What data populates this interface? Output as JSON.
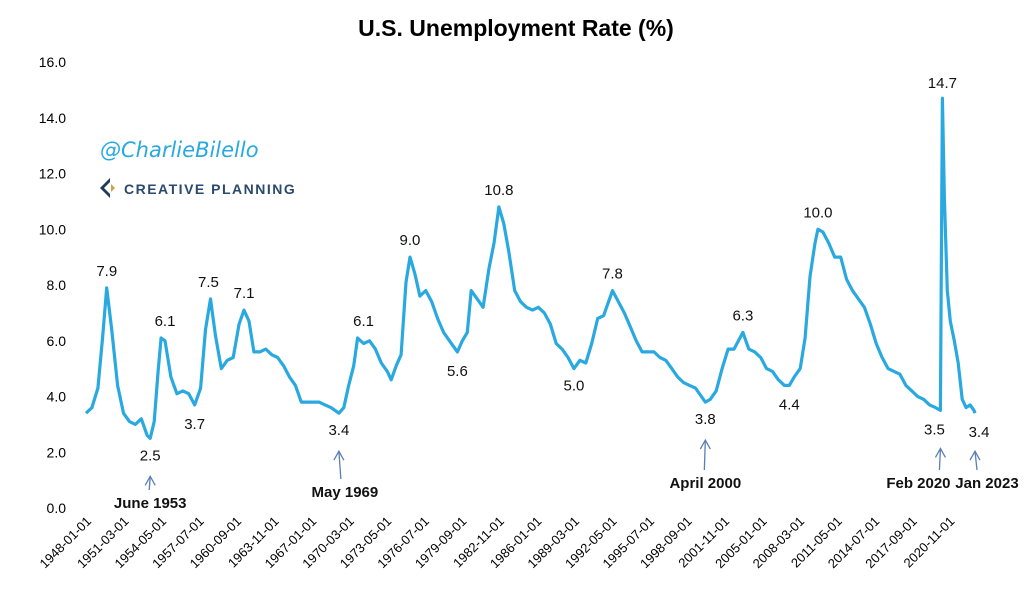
{
  "handle": "@CharlieBilello",
  "brand": {
    "name": "CREATIVE PLANNING",
    "logo_colors": [
      "#1f3a5c",
      "#c9a24a"
    ]
  },
  "chart_data": {
    "type": "line",
    "title": "U.S. Unemployment Rate (%)",
    "xlabel": "",
    "ylabel": "",
    "ylim": [
      0,
      16
    ],
    "yticks": [
      "0.0",
      "2.0",
      "4.0",
      "6.0",
      "8.0",
      "10.0",
      "12.0",
      "14.0",
      "16.0"
    ],
    "xticks": [
      "1948-01-01",
      "1951-03-01",
      "1954-05-01",
      "1957-07-01",
      "1960-09-01",
      "1963-11-01",
      "1967-01-01",
      "1970-03-01",
      "1973-05-01",
      "1976-07-01",
      "1979-09-01",
      "1982-11-01",
      "1986-01-01",
      "1989-03-01",
      "1992-05-01",
      "1995-07-01",
      "1998-09-01",
      "2001-11-01",
      "2005-01-01",
      "2008-03-01",
      "2011-05-01",
      "2014-07-01",
      "2017-09-01",
      "2020-11-01"
    ],
    "grid": false,
    "legend": "none",
    "line_color": "#29a9e0",
    "series": [
      {
        "x": [
          "1948-01",
          "1948-07",
          "1949-01",
          "1949-06",
          "1949-10",
          "1950-03",
          "1950-09",
          "1951-03",
          "1951-09",
          "1952-03",
          "1952-09",
          "1953-03",
          "1953-06",
          "1953-10",
          "1954-02",
          "1954-05",
          "1954-09",
          "1955-03",
          "1955-09",
          "1956-03",
          "1956-09",
          "1957-03",
          "1957-09",
          "1958-02",
          "1958-07",
          "1958-12",
          "1959-06",
          "1959-12",
          "1960-06",
          "1960-12",
          "1961-05",
          "1961-10",
          "1962-03",
          "1962-09",
          "1963-03",
          "1963-09",
          "1964-03",
          "1964-09",
          "1965-03",
          "1965-09",
          "1966-03",
          "1966-09",
          "1967-03",
          "1967-09",
          "1968-03",
          "1968-09",
          "1969-05",
          "1969-10",
          "1970-03",
          "1970-08",
          "1970-12",
          "1971-06",
          "1971-12",
          "1972-06",
          "1972-12",
          "1973-06",
          "1973-10",
          "1974-03",
          "1974-08",
          "1975-01",
          "1975-05",
          "1975-10",
          "1976-03",
          "1976-09",
          "1977-03",
          "1977-09",
          "1978-03",
          "1978-09",
          "1979-05",
          "1979-10",
          "1980-03",
          "1980-07",
          "1981-01",
          "1981-07",
          "1982-01",
          "1982-06",
          "1982-11",
          "1983-04",
          "1983-09",
          "1984-03",
          "1984-09",
          "1985-03",
          "1985-09",
          "1986-03",
          "1986-09",
          "1987-03",
          "1987-09",
          "1988-03",
          "1988-09",
          "1989-03",
          "1989-09",
          "1990-03",
          "1990-09",
          "1991-03",
          "1991-09",
          "1992-06",
          "1992-12",
          "1993-06",
          "1993-12",
          "1994-06",
          "1994-12",
          "1995-06",
          "1995-12",
          "1996-06",
          "1996-12",
          "1997-06",
          "1997-12",
          "1998-06",
          "1998-12",
          "1999-06",
          "1999-12",
          "2000-04",
          "2000-09",
          "2001-03",
          "2001-09",
          "2002-03",
          "2002-09",
          "2003-06",
          "2003-12",
          "2004-06",
          "2004-12",
          "2005-06",
          "2005-12",
          "2006-06",
          "2006-12",
          "2007-05",
          "2007-10",
          "2008-04",
          "2008-09",
          "2009-02",
          "2009-07",
          "2009-10",
          "2010-03",
          "2010-09",
          "2011-03",
          "2011-09",
          "2012-03",
          "2012-09",
          "2013-03",
          "2013-09",
          "2014-03",
          "2014-09",
          "2015-03",
          "2015-09",
          "2016-03",
          "2016-09",
          "2017-03",
          "2017-09",
          "2018-03",
          "2018-09",
          "2019-03",
          "2019-09",
          "2020-02",
          "2020-04",
          "2020-06",
          "2020-09",
          "2020-12",
          "2021-04",
          "2021-08",
          "2021-12",
          "2022-04",
          "2022-08",
          "2022-12",
          "2023-01"
        ],
        "values": [
          3.4,
          3.6,
          4.3,
          6.2,
          7.9,
          6.4,
          4.4,
          3.4,
          3.1,
          3.0,
          3.2,
          2.6,
          2.5,
          3.1,
          4.9,
          6.1,
          6.0,
          4.7,
          4.1,
          4.2,
          4.1,
          3.7,
          4.3,
          6.4,
          7.5,
          6.2,
          5.0,
          5.3,
          5.4,
          6.6,
          7.1,
          6.7,
          5.6,
          5.6,
          5.7,
          5.5,
          5.4,
          5.1,
          4.7,
          4.4,
          3.8,
          3.8,
          3.8,
          3.8,
          3.7,
          3.6,
          3.4,
          3.6,
          4.4,
          5.1,
          6.1,
          5.9,
          6.0,
          5.7,
          5.2,
          4.9,
          4.6,
          5.1,
          5.5,
          8.1,
          9.0,
          8.4,
          7.6,
          7.8,
          7.4,
          6.8,
          6.3,
          6.0,
          5.6,
          6.0,
          6.3,
          7.8,
          7.5,
          7.2,
          8.6,
          9.5,
          10.8,
          10.2,
          9.2,
          7.8,
          7.4,
          7.2,
          7.1,
          7.2,
          7.0,
          6.6,
          5.9,
          5.7,
          5.4,
          5.0,
          5.3,
          5.2,
          5.9,
          6.8,
          6.9,
          7.8,
          7.4,
          7.0,
          6.5,
          6.0,
          5.6,
          5.6,
          5.6,
          5.4,
          5.3,
          5.0,
          4.7,
          4.5,
          4.4,
          4.3,
          4.0,
          3.8,
          3.9,
          4.2,
          5.0,
          5.7,
          5.7,
          6.3,
          5.7,
          5.6,
          5.4,
          5.0,
          4.9,
          4.6,
          4.4,
          4.4,
          4.7,
          5.0,
          6.1,
          8.3,
          9.5,
          10.0,
          9.9,
          9.5,
          9.0,
          9.0,
          8.2,
          7.8,
          7.5,
          7.2,
          6.6,
          5.9,
          5.4,
          5.0,
          4.9,
          4.8,
          4.4,
          4.2,
          4.0,
          3.9,
          3.7,
          3.6,
          3.5,
          14.7,
          11.1,
          7.8,
          6.7,
          6.0,
          5.2,
          3.9,
          3.6,
          3.7,
          3.5,
          3.4
        ]
      }
    ],
    "data_labels": [
      {
        "x": "1949-10",
        "y": 7.9,
        "text": "7.9"
      },
      {
        "x": "1953-06",
        "y": 2.5,
        "text": "2.5"
      },
      {
        "x": "1954-09",
        "y": 6.1,
        "text": "6.1"
      },
      {
        "x": "1957-03",
        "y": 3.7,
        "text": "3.7"
      },
      {
        "x": "1958-05",
        "y": 7.5,
        "text": "7.5"
      },
      {
        "x": "1961-05",
        "y": 7.1,
        "text": "7.1"
      },
      {
        "x": "1969-05",
        "y": 3.4,
        "text": "3.4"
      },
      {
        "x": "1971-06",
        "y": 6.1,
        "text": "6.1"
      },
      {
        "x": "1975-05",
        "y": 9.0,
        "text": "9.0"
      },
      {
        "x": "1979-05",
        "y": 5.6,
        "text": "5.6"
      },
      {
        "x": "1982-11",
        "y": 10.8,
        "text": "10.8"
      },
      {
        "x": "1989-03",
        "y": 5.0,
        "text": "5.0"
      },
      {
        "x": "1992-06",
        "y": 7.8,
        "text": "7.8"
      },
      {
        "x": "2000-04",
        "y": 3.8,
        "text": "3.8"
      },
      {
        "x": "2003-06",
        "y": 6.3,
        "text": "6.3"
      },
      {
        "x": "2007-05",
        "y": 4.4,
        "text": "4.4"
      },
      {
        "x": "2009-10",
        "y": 10.0,
        "text": "10.0"
      },
      {
        "x": "2020-04",
        "y": 14.7,
        "text": "14.7"
      },
      {
        "x": "2020-02",
        "y": 3.5,
        "text": "3.5"
      },
      {
        "x": "2023-01",
        "y": 3.4,
        "text": "3.4"
      }
    ],
    "annotations": [
      {
        "x": "1953-06",
        "y": 2.5,
        "text": "June 1953"
      },
      {
        "x": "1969-05",
        "y": 3.4,
        "text": "May 1969"
      },
      {
        "x": "2000-04",
        "y": 3.8,
        "text": "April 2000"
      },
      {
        "x": "2020-02",
        "y": 3.5,
        "text": "Feb 2020"
      },
      {
        "x": "2023-01",
        "y": 3.4,
        "text": "Jan 2023"
      }
    ]
  }
}
